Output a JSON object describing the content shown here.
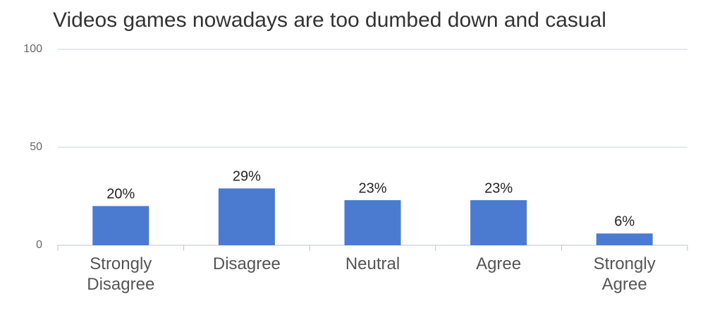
{
  "chart_data": {
    "type": "bar",
    "title": "Videos games nowadays are too dumbed down and casual",
    "categories": [
      "Strongly Disagree",
      "Disagree",
      "Neutral",
      "Agree",
      "Strongly Agree"
    ],
    "values": [
      20,
      29,
      23,
      23,
      6
    ],
    "value_labels": [
      "20%",
      "29%",
      "23%",
      "23%",
      "6%"
    ],
    "color": "#4a7bd0",
    "ylim": [
      0,
      100
    ],
    "yticks": [
      0,
      50,
      100
    ],
    "grid": true
  }
}
